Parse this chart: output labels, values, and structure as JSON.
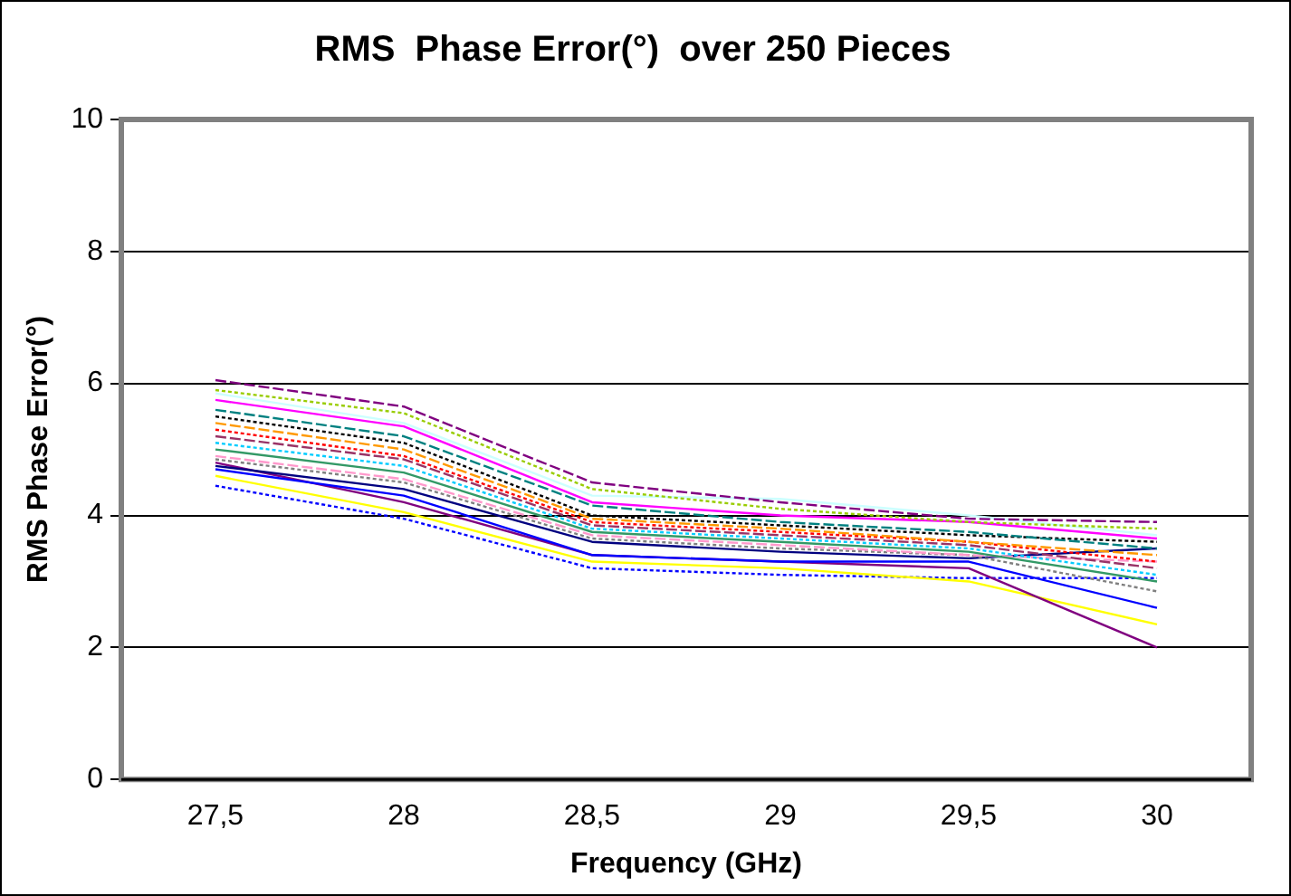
{
  "chart_data": {
    "type": "line",
    "title": "RMS  Phase Error(°)  over 250 Pieces",
    "xlabel": "Frequency (GHz)",
    "ylabel": "RMS Phase Error(°)",
    "categories": [
      "27,5",
      "28",
      "28,5",
      "29",
      "29,5",
      "30"
    ],
    "ylim": [
      0,
      10
    ],
    "yticks": [
      0,
      2,
      4,
      6,
      8,
      10
    ],
    "grid": "y",
    "legend": false,
    "marker": "none",
    "series": [
      {
        "color": "#800080",
        "line_style": "dashed",
        "values": [
          6.05,
          5.65,
          4.5,
          4.2,
          3.95,
          3.9
        ]
      },
      {
        "color": "#99cc00",
        "line_style": "dotted",
        "values": [
          5.9,
          5.55,
          4.4,
          4.1,
          3.9,
          3.8
        ]
      },
      {
        "color": "#ccffff",
        "line_style": "solid",
        "values": [
          5.85,
          5.4,
          4.3,
          4.25,
          4.0,
          3.7
        ]
      },
      {
        "color": "#ff00ff",
        "line_style": "solid",
        "values": [
          5.75,
          5.35,
          4.2,
          4.0,
          3.9,
          3.65
        ]
      },
      {
        "color": "#008080",
        "line_style": "dashed",
        "values": [
          5.6,
          5.2,
          4.15,
          3.9,
          3.75,
          3.5
        ]
      },
      {
        "color": "#000000",
        "line_style": "dotted",
        "values": [
          5.5,
          5.1,
          4.0,
          3.85,
          3.7,
          3.6
        ]
      },
      {
        "color": "#ff9900",
        "line_style": "dashed",
        "values": [
          5.4,
          5.0,
          3.95,
          3.8,
          3.6,
          3.4
        ]
      },
      {
        "color": "#ff0000",
        "line_style": "dotted",
        "values": [
          5.3,
          4.9,
          3.9,
          3.75,
          3.6,
          3.3
        ]
      },
      {
        "color": "#993366",
        "line_style": "dashed",
        "values": [
          5.2,
          4.85,
          3.85,
          3.7,
          3.55,
          3.2
        ]
      },
      {
        "color": "#00ccff",
        "line_style": "dotted",
        "values": [
          5.1,
          4.75,
          3.8,
          3.65,
          3.5,
          3.1
        ]
      },
      {
        "color": "#339966",
        "line_style": "solid",
        "values": [
          5.0,
          4.65,
          3.75,
          3.6,
          3.45,
          3.0
        ]
      },
      {
        "color": "#ff99cc",
        "line_style": "dashed",
        "values": [
          4.9,
          4.55,
          3.7,
          3.55,
          3.4,
          3.3
        ]
      },
      {
        "color": "#808080",
        "line_style": "dotted",
        "values": [
          4.85,
          4.5,
          3.65,
          3.5,
          3.4,
          2.85
        ]
      },
      {
        "color": "#000080",
        "line_style": "solid",
        "values": [
          4.75,
          4.4,
          3.6,
          3.45,
          3.35,
          3.5
        ]
      },
      {
        "color": "#0000ff",
        "line_style": "solid",
        "values": [
          4.7,
          4.3,
          3.4,
          3.3,
          3.3,
          2.6
        ]
      },
      {
        "color": "#800080",
        "line_style": "solid",
        "values": [
          4.8,
          4.2,
          3.4,
          3.3,
          3.2,
          2.0
        ]
      },
      {
        "color": "#ffff00",
        "line_style": "solid",
        "values": [
          4.6,
          4.05,
          3.3,
          3.2,
          3.0,
          2.35
        ]
      },
      {
        "color": "#0000ff",
        "line_style": "dotted",
        "values": [
          4.45,
          3.95,
          3.2,
          3.1,
          3.05,
          3.05
        ]
      }
    ]
  }
}
